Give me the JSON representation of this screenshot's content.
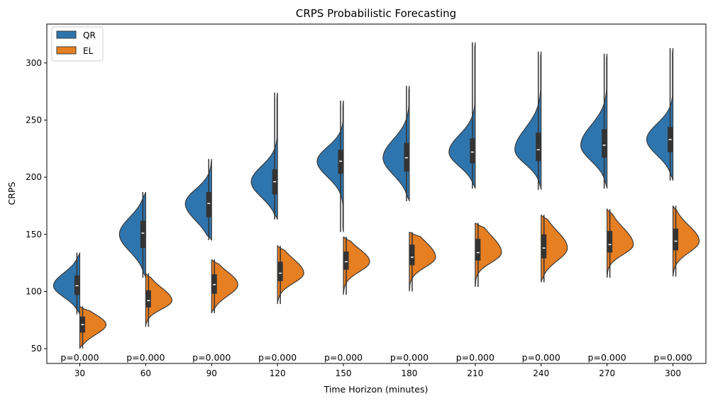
{
  "chart_data": {
    "type": "violin",
    "title": "CRPS Probabilistic Forecasting",
    "xlabel": "Time Horizon (minutes)",
    "ylabel": "CRPS",
    "ylim": [
      37,
      334
    ],
    "yticks": [
      50,
      100,
      150,
      200,
      250,
      300
    ],
    "categories": [
      "30",
      "60",
      "90",
      "120",
      "150",
      "180",
      "210",
      "240",
      "270",
      "300"
    ],
    "annotations": [
      "p=0.000",
      "p=0.000",
      "p=0.000",
      "p=0.000",
      "p=0.000",
      "p=0.000",
      "p=0.000",
      "p=0.000",
      "p=0.000",
      "p=0.000"
    ],
    "legend_position": "top-left",
    "grid": false,
    "series": [
      {
        "name": "QR",
        "color": "#2f75ad",
        "side": "left",
        "stats": [
          {
            "min": 80,
            "q1": 97,
            "median": 105,
            "q3": 114,
            "max": 134,
            "mode": 105
          },
          {
            "min": 112,
            "q1": 138,
            "median": 151,
            "q3": 162,
            "max": 187,
            "mode": 150
          },
          {
            "min": 145,
            "q1": 165,
            "median": 177,
            "q3": 187,
            "max": 216,
            "mode": 177
          },
          {
            "min": 163,
            "q1": 185,
            "median": 196,
            "q3": 207,
            "max": 274,
            "mode": 196
          },
          {
            "min": 152,
            "q1": 203,
            "median": 214,
            "q3": 224,
            "max": 267,
            "mode": 214
          },
          {
            "min": 179,
            "q1": 205,
            "median": 217,
            "q3": 230,
            "max": 280,
            "mode": 217
          },
          {
            "min": 190,
            "q1": 212,
            "median": 222,
            "q3": 234,
            "max": 318,
            "mode": 222
          },
          {
            "min": 189,
            "q1": 214,
            "median": 224,
            "q3": 239,
            "max": 310,
            "mode": 224
          },
          {
            "min": 190,
            "q1": 217,
            "median": 228,
            "q3": 242,
            "max": 308,
            "mode": 228
          },
          {
            "min": 197,
            "q1": 222,
            "median": 233,
            "q3": 244,
            "max": 313,
            "mode": 233
          }
        ]
      },
      {
        "name": "EL",
        "color": "#e67e22",
        "side": "right",
        "stats": [
          {
            "min": 50,
            "q1": 64,
            "median": 71,
            "q3": 78,
            "max": 87,
            "mode": 71
          },
          {
            "min": 69,
            "q1": 86,
            "median": 92,
            "q3": 101,
            "max": 116,
            "mode": 92
          },
          {
            "min": 81,
            "q1": 98,
            "median": 106,
            "q3": 115,
            "max": 128,
            "mode": 106
          },
          {
            "min": 89,
            "q1": 109,
            "median": 116,
            "q3": 126,
            "max": 140,
            "mode": 116
          },
          {
            "min": 97,
            "q1": 119,
            "median": 126,
            "q3": 135,
            "max": 148,
            "mode": 126
          },
          {
            "min": 100,
            "q1": 123,
            "median": 130,
            "q3": 141,
            "max": 152,
            "mode": 130
          },
          {
            "min": 104,
            "q1": 127,
            "median": 134,
            "q3": 146,
            "max": 160,
            "mode": 134
          },
          {
            "min": 108,
            "q1": 129,
            "median": 138,
            "q3": 150,
            "max": 167,
            "mode": 138
          },
          {
            "min": 112,
            "q1": 134,
            "median": 141,
            "q3": 153,
            "max": 172,
            "mode": 141
          },
          {
            "min": 113,
            "q1": 136,
            "median": 144,
            "q3": 155,
            "max": 175,
            "mode": 144
          }
        ]
      }
    ]
  }
}
